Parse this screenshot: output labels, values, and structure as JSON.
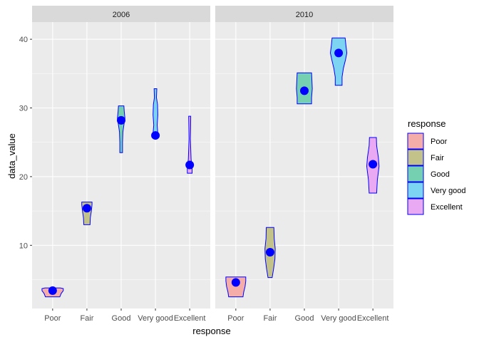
{
  "chart_data": {
    "type": "violin",
    "panels": [
      "2006",
      "2010"
    ],
    "categories": [
      "Poor",
      "Fair",
      "Good",
      "Very good",
      "Excellent"
    ],
    "xlabel": "response",
    "ylabel": "data_value",
    "ylim": [
      0.8,
      42.5
    ],
    "yticks": [
      10,
      20,
      30,
      40
    ],
    "grid": true,
    "legend": {
      "title": "response",
      "position": "right",
      "entries": [
        "Poor",
        "Fair",
        "Good",
        "Very good",
        "Excellent"
      ]
    },
    "colors": {
      "Poor": "#F4ADA9",
      "Fair": "#C3C28A",
      "Good": "#74D0B1",
      "Very good": "#7DD4F2",
      "Excellent": "#EAAAF3",
      "outline": "#0000FF",
      "point": "#0000FF",
      "panel_bg": "#EBEBEB",
      "strip_bg": "#D9D9D9",
      "grid": "#FFFFFF"
    },
    "series": [
      {
        "panel": "2006",
        "violins": [
          {
            "category": "Poor",
            "mean": 3.4,
            "profile": [
              [
                2.5,
                0.42
              ],
              [
                3.0,
                0.5
              ],
              [
                3.4,
                0.62
              ],
              [
                3.7,
                0.62
              ],
              [
                3.8,
                0.45
              ]
            ]
          },
          {
            "category": "Fair",
            "mean": 15.4,
            "profile": [
              [
                13.0,
                0.18
              ],
              [
                14.0,
                0.2
              ],
              [
                15.0,
                0.26
              ],
              [
                15.9,
                0.3
              ],
              [
                16.3,
                0.3
              ]
            ]
          },
          {
            "category": "Good",
            "mean": 28.2,
            "profile": [
              [
                23.5,
                0.08
              ],
              [
                25.0,
                0.08
              ],
              [
                26.5,
                0.1
              ],
              [
                27.5,
                0.16
              ],
              [
                28.5,
                0.22
              ],
              [
                29.5,
                0.18
              ],
              [
                30.3,
                0.16
              ]
            ]
          },
          {
            "category": "Very good",
            "mean": 26.0,
            "profile": [
              [
                25.7,
                0.12
              ],
              [
                26.3,
                0.14
              ],
              [
                27.5,
                0.1
              ],
              [
                29.0,
                0.14
              ],
              [
                30.5,
                0.12
              ],
              [
                31.5,
                0.06
              ],
              [
                32.8,
                0.08
              ]
            ]
          },
          {
            "category": "Excellent",
            "mean": 21.7,
            "profile": [
              [
                20.5,
                0.14
              ],
              [
                21.5,
                0.14
              ],
              [
                22.5,
                0.08
              ],
              [
                24.0,
                0.06
              ],
              [
                25.5,
                0.04
              ],
              [
                27.0,
                0.05
              ],
              [
                28.8,
                0.06
              ]
            ]
          }
        ]
      },
      {
        "panel": "2010",
        "violins": [
          {
            "category": "Poor",
            "mean": 4.6,
            "profile": [
              [
                2.5,
                0.42
              ],
              [
                3.2,
                0.46
              ],
              [
                4.0,
                0.54
              ],
              [
                4.8,
                0.58
              ],
              [
                5.4,
                0.58
              ]
            ]
          },
          {
            "category": "Fair",
            "mean": 9.0,
            "profile": [
              [
                5.3,
                0.12
              ],
              [
                6.5,
                0.2
              ],
              [
                8.0,
                0.28
              ],
              [
                9.5,
                0.3
              ],
              [
                11.0,
                0.24
              ],
              [
                12.6,
                0.22
              ]
            ]
          },
          {
            "category": "Good",
            "mean": 32.5,
            "profile": [
              [
                30.6,
                0.42
              ],
              [
                31.5,
                0.42
              ],
              [
                32.8,
                0.46
              ],
              [
                34.0,
                0.44
              ],
              [
                35.1,
                0.42
              ]
            ]
          },
          {
            "category": "Very good",
            "mean": 38.0,
            "profile": [
              [
                33.3,
                0.2
              ],
              [
                34.5,
                0.2
              ],
              [
                35.8,
                0.28
              ],
              [
                37.0,
                0.4
              ],
              [
                38.0,
                0.48
              ],
              [
                39.2,
                0.42
              ],
              [
                40.2,
                0.38
              ]
            ]
          },
          {
            "category": "Excellent",
            "mean": 21.8,
            "profile": [
              [
                17.6,
                0.22
              ],
              [
                19.5,
                0.26
              ],
              [
                21.5,
                0.36
              ],
              [
                22.8,
                0.32
              ],
              [
                24.5,
                0.22
              ],
              [
                25.7,
                0.2
              ]
            ]
          }
        ]
      }
    ]
  }
}
